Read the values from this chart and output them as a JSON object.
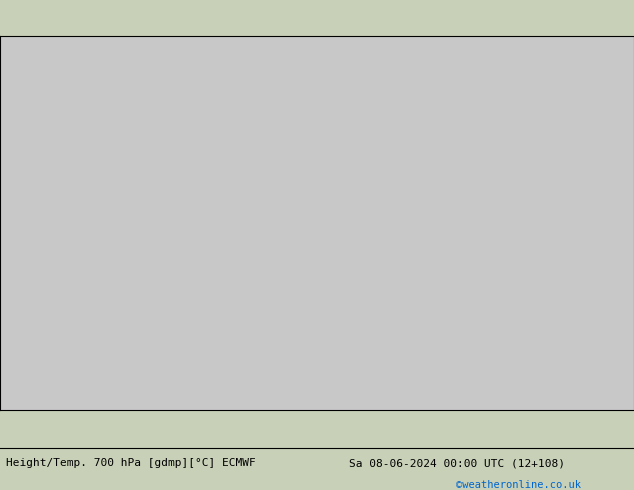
{
  "title_left": "Height/Temp. 700 hPa [gdmp][°C] ECMWF",
  "title_right": "Sa 08-06-2024 00:00 UTC (12+108)",
  "credit": "©weatheronline.co.uk",
  "bg_color": "#c8c8c8",
  "land_color_low": "#d0d0d0",
  "land_color_high": "#b0d090",
  "sea_color": "#c8c8c8",
  "text_color_black": "#000000",
  "text_color_label": "#000000",
  "text_fontsize": 8,
  "credit_color": "#0066cc"
}
